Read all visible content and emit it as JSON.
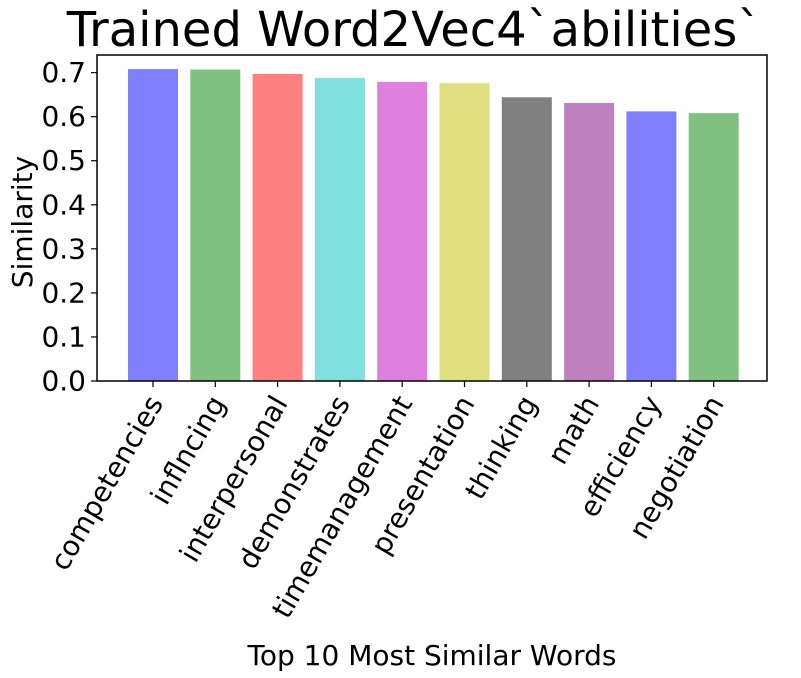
{
  "chart_data": {
    "type": "bar",
    "title": "Trained Word2Vec4`abilities`",
    "xlabel": "Top 10 Most Similar Words",
    "ylabel": "Similarity",
    "ylim": [
      0,
      0.74
    ],
    "yticks": [
      "0.0",
      "0.1",
      "0.2",
      "0.3",
      "0.4",
      "0.5",
      "0.6",
      "0.7"
    ],
    "categories": [
      "competencies",
      "inflncing",
      "interpersonal",
      "demonstrates",
      "timemanagement",
      "presentation",
      "thinking",
      "math",
      "efficiency",
      "negotiation"
    ],
    "values": [
      0.708,
      0.707,
      0.697,
      0.688,
      0.679,
      0.676,
      0.644,
      0.631,
      0.612,
      0.608
    ],
    "colors": [
      "#8080ff",
      "#80c080",
      "#ff8080",
      "#80dfdf",
      "#df80df",
      "#dfdf80",
      "#808080",
      "#bf80bf",
      "#8080ff",
      "#80c080"
    ],
    "grid": false,
    "legend": "none"
  }
}
